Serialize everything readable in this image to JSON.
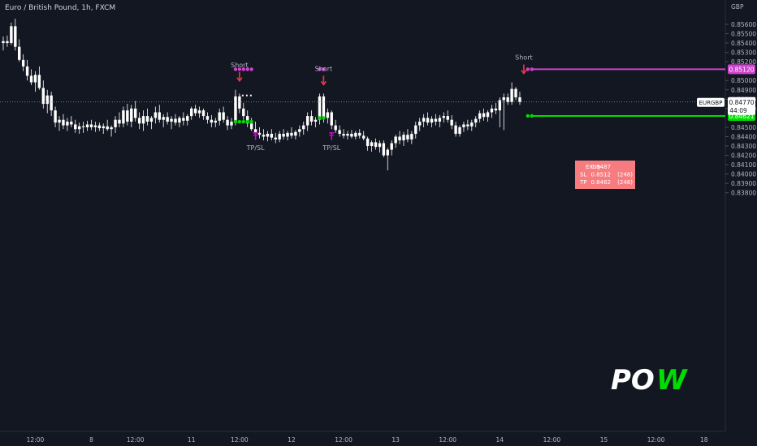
{
  "header": {
    "title": "Euro / British Pound, 1h, FXCM"
  },
  "axis": {
    "currency": "GBP"
  },
  "chart_data": {
    "type": "candlestick",
    "symbol": "EURGBP",
    "ylim": [
      0.83806,
      0.8563
    ],
    "y_ticks": [
      {
        "value": 0.856,
        "label": "0.85600"
      },
      {
        "value": 0.855,
        "label": "0.85500"
      },
      {
        "value": 0.854,
        "label": "0.85400"
      },
      {
        "value": 0.853,
        "label": "0.85300"
      },
      {
        "value": 0.852,
        "label": "0.85200"
      },
      {
        "value": 0.85,
        "label": "0.85000"
      },
      {
        "value": 0.849,
        "label": "0.84900"
      },
      {
        "value": 0.848,
        "label": "0.84800"
      },
      {
        "value": 0.847,
        "label": "0.84700"
      },
      {
        "value": 0.845,
        "label": "0.84500"
      },
      {
        "value": 0.844,
        "label": "0.84400"
      },
      {
        "value": 0.843,
        "label": "0.84300"
      },
      {
        "value": 0.842,
        "label": "0.84200"
      },
      {
        "value": 0.841,
        "label": "0.84100"
      },
      {
        "value": 0.84,
        "label": "0.84000"
      },
      {
        "value": 0.839,
        "label": "0.83900"
      },
      {
        "value": 0.838,
        "label": "0.83800"
      }
    ],
    "x_ticks": [
      {
        "bar": 8,
        "label": "12:00"
      },
      {
        "bar": 22,
        "label": "8"
      },
      {
        "bar": 33,
        "label": "12:00"
      },
      {
        "bar": 47,
        "label": "11"
      },
      {
        "bar": 59,
        "label": "12:00"
      },
      {
        "bar": 72,
        "label": "12"
      },
      {
        "bar": 85,
        "label": "12:00"
      },
      {
        "bar": 98,
        "label": "13"
      },
      {
        "bar": 111,
        "label": "12:00"
      },
      {
        "bar": 124,
        "label": "14"
      },
      {
        "bar": 137,
        "label": "12:00"
      },
      {
        "bar": 150,
        "label": "15"
      },
      {
        "bar": 163,
        "label": "12:00"
      },
      {
        "bar": 175,
        "label": "18"
      }
    ],
    "candles": [
      {
        "o": 0.854,
        "h": 0.8547,
        "l": 0.8532,
        "c": 0.8542
      },
      {
        "o": 0.8542,
        "h": 0.8548,
        "l": 0.8536,
        "c": 0.854
      },
      {
        "o": 0.854,
        "h": 0.8562,
        "l": 0.8538,
        "c": 0.8558
      },
      {
        "o": 0.8558,
        "h": 0.8566,
        "l": 0.8532,
        "c": 0.8536
      },
      {
        "o": 0.8536,
        "h": 0.8544,
        "l": 0.852,
        "c": 0.8522
      },
      {
        "o": 0.8522,
        "h": 0.8528,
        "l": 0.851,
        "c": 0.8515
      },
      {
        "o": 0.8515,
        "h": 0.8522,
        "l": 0.85,
        "c": 0.8505
      },
      {
        "o": 0.8505,
        "h": 0.8512,
        "l": 0.8495,
        "c": 0.8498
      },
      {
        "o": 0.8498,
        "h": 0.851,
        "l": 0.8488,
        "c": 0.8506
      },
      {
        "o": 0.8506,
        "h": 0.8515,
        "l": 0.849,
        "c": 0.8492
      },
      {
        "o": 0.8492,
        "h": 0.85,
        "l": 0.847,
        "c": 0.8475
      },
      {
        "o": 0.8475,
        "h": 0.849,
        "l": 0.8465,
        "c": 0.8484
      },
      {
        "o": 0.8484,
        "h": 0.8488,
        "l": 0.8462,
        "c": 0.8468
      },
      {
        "o": 0.8468,
        "h": 0.8472,
        "l": 0.845,
        "c": 0.8455
      },
      {
        "o": 0.8455,
        "h": 0.8462,
        "l": 0.8446,
        "c": 0.8458
      },
      {
        "o": 0.8458,
        "h": 0.8464,
        "l": 0.8448,
        "c": 0.8452
      },
      {
        "o": 0.8452,
        "h": 0.846,
        "l": 0.8446,
        "c": 0.8456
      },
      {
        "o": 0.8456,
        "h": 0.8462,
        "l": 0.845,
        "c": 0.8453
      },
      {
        "o": 0.8453,
        "h": 0.8458,
        "l": 0.8444,
        "c": 0.8448
      },
      {
        "o": 0.8448,
        "h": 0.8455,
        "l": 0.8443,
        "c": 0.8451
      },
      {
        "o": 0.8451,
        "h": 0.8456,
        "l": 0.8444,
        "c": 0.845
      },
      {
        "o": 0.845,
        "h": 0.8457,
        "l": 0.8446,
        "c": 0.8453
      },
      {
        "o": 0.8453,
        "h": 0.8458,
        "l": 0.8447,
        "c": 0.845
      },
      {
        "o": 0.845,
        "h": 0.8456,
        "l": 0.8445,
        "c": 0.8452
      },
      {
        "o": 0.8452,
        "h": 0.8455,
        "l": 0.8446,
        "c": 0.8449
      },
      {
        "o": 0.8449,
        "h": 0.8454,
        "l": 0.8443,
        "c": 0.8451
      },
      {
        "o": 0.8451,
        "h": 0.8458,
        "l": 0.8446,
        "c": 0.8448
      },
      {
        "o": 0.8448,
        "h": 0.8452,
        "l": 0.844,
        "c": 0.845
      },
      {
        "o": 0.845,
        "h": 0.8462,
        "l": 0.8444,
        "c": 0.8458
      },
      {
        "o": 0.8458,
        "h": 0.8466,
        "l": 0.845,
        "c": 0.8454
      },
      {
        "o": 0.8454,
        "h": 0.8472,
        "l": 0.845,
        "c": 0.8468
      },
      {
        "o": 0.8468,
        "h": 0.8475,
        "l": 0.8452,
        "c": 0.8456
      },
      {
        "o": 0.8456,
        "h": 0.8474,
        "l": 0.845,
        "c": 0.847
      },
      {
        "o": 0.847,
        "h": 0.8478,
        "l": 0.8456,
        "c": 0.846
      },
      {
        "o": 0.846,
        "h": 0.8466,
        "l": 0.8448,
        "c": 0.8454
      },
      {
        "o": 0.8454,
        "h": 0.8468,
        "l": 0.8446,
        "c": 0.8462
      },
      {
        "o": 0.8462,
        "h": 0.847,
        "l": 0.8452,
        "c": 0.8456
      },
      {
        "o": 0.8456,
        "h": 0.8462,
        "l": 0.8448,
        "c": 0.846
      },
      {
        "o": 0.846,
        "h": 0.8472,
        "l": 0.8454,
        "c": 0.8466
      },
      {
        "o": 0.8466,
        "h": 0.8474,
        "l": 0.8455,
        "c": 0.8458
      },
      {
        "o": 0.8458,
        "h": 0.8464,
        "l": 0.845,
        "c": 0.8461
      },
      {
        "o": 0.8461,
        "h": 0.8466,
        "l": 0.8453,
        "c": 0.8456
      },
      {
        "o": 0.8456,
        "h": 0.8462,
        "l": 0.8448,
        "c": 0.8459
      },
      {
        "o": 0.8459,
        "h": 0.8464,
        "l": 0.8452,
        "c": 0.8455
      },
      {
        "o": 0.8455,
        "h": 0.8462,
        "l": 0.845,
        "c": 0.846
      },
      {
        "o": 0.846,
        "h": 0.8466,
        "l": 0.8452,
        "c": 0.8457
      },
      {
        "o": 0.8457,
        "h": 0.8464,
        "l": 0.8452,
        "c": 0.8462
      },
      {
        "o": 0.8462,
        "h": 0.8472,
        "l": 0.8458,
        "c": 0.847
      },
      {
        "o": 0.847,
        "h": 0.8474,
        "l": 0.8462,
        "c": 0.8465
      },
      {
        "o": 0.8465,
        "h": 0.8472,
        "l": 0.846,
        "c": 0.8468
      },
      {
        "o": 0.8468,
        "h": 0.847,
        "l": 0.8458,
        "c": 0.8462
      },
      {
        "o": 0.8462,
        "h": 0.8466,
        "l": 0.8454,
        "c": 0.8458
      },
      {
        "o": 0.8458,
        "h": 0.8463,
        "l": 0.845,
        "c": 0.8455
      },
      {
        "o": 0.8455,
        "h": 0.846,
        "l": 0.845,
        "c": 0.8457
      },
      {
        "o": 0.8457,
        "h": 0.847,
        "l": 0.8452,
        "c": 0.8466
      },
      {
        "o": 0.8466,
        "h": 0.8472,
        "l": 0.8455,
        "c": 0.8458
      },
      {
        "o": 0.8458,
        "h": 0.8462,
        "l": 0.8447,
        "c": 0.8452
      },
      {
        "o": 0.8452,
        "h": 0.846,
        "l": 0.8448,
        "c": 0.8456
      },
      {
        "o": 0.8456,
        "h": 0.849,
        "l": 0.8452,
        "c": 0.8483
      },
      {
        "o": 0.8483,
        "h": 0.8486,
        "l": 0.8465,
        "c": 0.847
      },
      {
        "o": 0.847,
        "h": 0.8476,
        "l": 0.8458,
        "c": 0.8462
      },
      {
        "o": 0.8462,
        "h": 0.8468,
        "l": 0.845,
        "c": 0.8454
      },
      {
        "o": 0.8454,
        "h": 0.846,
        "l": 0.8446,
        "c": 0.8448
      },
      {
        "o": 0.8448,
        "h": 0.8456,
        "l": 0.844,
        "c": 0.8444
      },
      {
        "o": 0.8444,
        "h": 0.845,
        "l": 0.8438,
        "c": 0.8442
      },
      {
        "o": 0.8442,
        "h": 0.8448,
        "l": 0.8436,
        "c": 0.844
      },
      {
        "o": 0.844,
        "h": 0.8446,
        "l": 0.8435,
        "c": 0.8443
      },
      {
        "o": 0.8443,
        "h": 0.8448,
        "l": 0.8436,
        "c": 0.8439
      },
      {
        "o": 0.8439,
        "h": 0.8444,
        "l": 0.8433,
        "c": 0.8437
      },
      {
        "o": 0.8437,
        "h": 0.8446,
        "l": 0.8434,
        "c": 0.8443
      },
      {
        "o": 0.8443,
        "h": 0.8448,
        "l": 0.8437,
        "c": 0.844
      },
      {
        "o": 0.844,
        "h": 0.8446,
        "l": 0.8436,
        "c": 0.8444
      },
      {
        "o": 0.8444,
        "h": 0.845,
        "l": 0.8438,
        "c": 0.8441
      },
      {
        "o": 0.8441,
        "h": 0.8447,
        "l": 0.8437,
        "c": 0.8445
      },
      {
        "o": 0.8445,
        "h": 0.8452,
        "l": 0.844,
        "c": 0.8448
      },
      {
        "o": 0.8448,
        "h": 0.8456,
        "l": 0.8442,
        "c": 0.8452
      },
      {
        "o": 0.8452,
        "h": 0.8466,
        "l": 0.8446,
        "c": 0.8462
      },
      {
        "o": 0.8462,
        "h": 0.8468,
        "l": 0.8452,
        "c": 0.8456
      },
      {
        "o": 0.8456,
        "h": 0.8461,
        "l": 0.845,
        "c": 0.8458
      },
      {
        "o": 0.8458,
        "h": 0.8486,
        "l": 0.8453,
        "c": 0.8483
      },
      {
        "o": 0.8483,
        "h": 0.8486,
        "l": 0.8455,
        "c": 0.846
      },
      {
        "o": 0.846,
        "h": 0.847,
        "l": 0.8454,
        "c": 0.8466
      },
      {
        "o": 0.8466,
        "h": 0.8468,
        "l": 0.8448,
        "c": 0.8452
      },
      {
        "o": 0.8452,
        "h": 0.8458,
        "l": 0.8444,
        "c": 0.8447
      },
      {
        "o": 0.8447,
        "h": 0.8452,
        "l": 0.844,
        "c": 0.8443
      },
      {
        "o": 0.8443,
        "h": 0.8448,
        "l": 0.8438,
        "c": 0.8441
      },
      {
        "o": 0.8441,
        "h": 0.8446,
        "l": 0.8437,
        "c": 0.8443
      },
      {
        "o": 0.8443,
        "h": 0.8447,
        "l": 0.8438,
        "c": 0.844
      },
      {
        "o": 0.844,
        "h": 0.8446,
        "l": 0.8437,
        "c": 0.8444
      },
      {
        "o": 0.8444,
        "h": 0.8448,
        "l": 0.8438,
        "c": 0.8441
      },
      {
        "o": 0.8441,
        "h": 0.8446,
        "l": 0.8436,
        "c": 0.8438
      },
      {
        "o": 0.8438,
        "h": 0.844,
        "l": 0.8425,
        "c": 0.843
      },
      {
        "o": 0.843,
        "h": 0.8436,
        "l": 0.8424,
        "c": 0.8434
      },
      {
        "o": 0.8434,
        "h": 0.8438,
        "l": 0.8426,
        "c": 0.8429
      },
      {
        "o": 0.8429,
        "h": 0.8436,
        "l": 0.8423,
        "c": 0.8433
      },
      {
        "o": 0.8433,
        "h": 0.8436,
        "l": 0.8418,
        "c": 0.842
      },
      {
        "o": 0.842,
        "h": 0.8428,
        "l": 0.8404,
        "c": 0.8426
      },
      {
        "o": 0.8426,
        "h": 0.8436,
        "l": 0.842,
        "c": 0.8433
      },
      {
        "o": 0.8433,
        "h": 0.8442,
        "l": 0.8428,
        "c": 0.844
      },
      {
        "o": 0.844,
        "h": 0.8446,
        "l": 0.8432,
        "c": 0.8436
      },
      {
        "o": 0.8436,
        "h": 0.8445,
        "l": 0.843,
        "c": 0.8442
      },
      {
        "o": 0.8442,
        "h": 0.8448,
        "l": 0.8434,
        "c": 0.8437
      },
      {
        "o": 0.8437,
        "h": 0.8446,
        "l": 0.8432,
        "c": 0.8443
      },
      {
        "o": 0.8443,
        "h": 0.8456,
        "l": 0.8438,
        "c": 0.8452
      },
      {
        "o": 0.8452,
        "h": 0.846,
        "l": 0.8446,
        "c": 0.8456
      },
      {
        "o": 0.8456,
        "h": 0.8464,
        "l": 0.845,
        "c": 0.846
      },
      {
        "o": 0.846,
        "h": 0.8466,
        "l": 0.8452,
        "c": 0.8455
      },
      {
        "o": 0.8455,
        "h": 0.8462,
        "l": 0.845,
        "c": 0.8459
      },
      {
        "o": 0.8459,
        "h": 0.8464,
        "l": 0.8452,
        "c": 0.8456
      },
      {
        "o": 0.8456,
        "h": 0.8463,
        "l": 0.845,
        "c": 0.846
      },
      {
        "o": 0.846,
        "h": 0.8466,
        "l": 0.8455,
        "c": 0.8462
      },
      {
        "o": 0.8462,
        "h": 0.8468,
        "l": 0.8455,
        "c": 0.8458
      },
      {
        "o": 0.8458,
        "h": 0.8463,
        "l": 0.8448,
        "c": 0.8452
      },
      {
        "o": 0.8452,
        "h": 0.8456,
        "l": 0.844,
        "c": 0.8443
      },
      {
        "o": 0.8443,
        "h": 0.8452,
        "l": 0.844,
        "c": 0.845
      },
      {
        "o": 0.845,
        "h": 0.8456,
        "l": 0.8445,
        "c": 0.8453
      },
      {
        "o": 0.8453,
        "h": 0.8458,
        "l": 0.8447,
        "c": 0.8451
      },
      {
        "o": 0.8451,
        "h": 0.8458,
        "l": 0.8446,
        "c": 0.8455
      },
      {
        "o": 0.8455,
        "h": 0.8462,
        "l": 0.845,
        "c": 0.8459
      },
      {
        "o": 0.8459,
        "h": 0.8468,
        "l": 0.8455,
        "c": 0.8465
      },
      {
        "o": 0.8465,
        "h": 0.847,
        "l": 0.8457,
        "c": 0.8461
      },
      {
        "o": 0.8461,
        "h": 0.8468,
        "l": 0.8456,
        "c": 0.8466
      },
      {
        "o": 0.8466,
        "h": 0.8474,
        "l": 0.846,
        "c": 0.847
      },
      {
        "o": 0.847,
        "h": 0.8476,
        "l": 0.8464,
        "c": 0.8468
      },
      {
        "o": 0.8468,
        "h": 0.8482,
        "l": 0.845,
        "c": 0.8479
      },
      {
        "o": 0.8479,
        "h": 0.8486,
        "l": 0.8447,
        "c": 0.8482
      },
      {
        "o": 0.8482,
        "h": 0.8486,
        "l": 0.8474,
        "c": 0.8477
      },
      {
        "o": 0.8477,
        "h": 0.8498,
        "l": 0.8474,
        "c": 0.8491
      },
      {
        "o": 0.8491,
        "h": 0.8493,
        "l": 0.8479,
        "c": 0.8482
      },
      {
        "o": 0.8482,
        "h": 0.8488,
        "l": 0.8474,
        "c": 0.8477
      }
    ],
    "signals": [
      {
        "bar": 59,
        "type": "Short",
        "label": "Short",
        "price": 0.849,
        "tp_sl_label": "TP/SL",
        "tp_bar": 63
      },
      {
        "bar": 80,
        "type": "Short",
        "label": "Short",
        "price": 0.8486,
        "tp_sl_label": "TP/SL",
        "tp_bar": 82
      },
      {
        "bar": 130,
        "type": "Short",
        "label": "Short",
        "price": 0.8498
      }
    ],
    "sl_dots": [
      {
        "from_bar": 58,
        "to_bar": 62,
        "price": 0.8512
      },
      {
        "from_bar": 79,
        "to_bar": 80,
        "price": 0.8512
      }
    ],
    "tp_dots": [
      {
        "from_bar": 58,
        "to_bar": 62,
        "price": 0.8456
      },
      {
        "from_bar": 79,
        "to_bar": 80,
        "price": 0.846
      }
    ],
    "levels": [
      {
        "name": "SL",
        "price": 0.8512,
        "label": "0.85120",
        "color": "#cc44cc",
        "from_bar": 131
      },
      {
        "name": "TP",
        "price": 0.84621,
        "label": "0.84621",
        "color": "#00dd00",
        "from_bar": 131
      }
    ],
    "last_price": {
      "symbol": "EURGBP",
      "value": "0.84770",
      "countdown": "44:09",
      "price": 0.8477
    },
    "trade_box": {
      "rows": [
        [
          "Entry",
          "0.8487",
          ""
        ],
        [
          "SL",
          "0.8512",
          "(248)"
        ],
        [
          "TP",
          "0.8462",
          "(248)"
        ]
      ]
    }
  },
  "colors": {
    "background": "#131722",
    "candle": "#ffffff",
    "text": "#b2b5be",
    "sl": "#cc44cc",
    "tp": "#00dd00",
    "signal": "#f23645",
    "tpsl_marker": "#d500d5",
    "trade_box": "#f77c80"
  },
  "logo": {
    "text_pre": "PO",
    "text_post": "W"
  }
}
